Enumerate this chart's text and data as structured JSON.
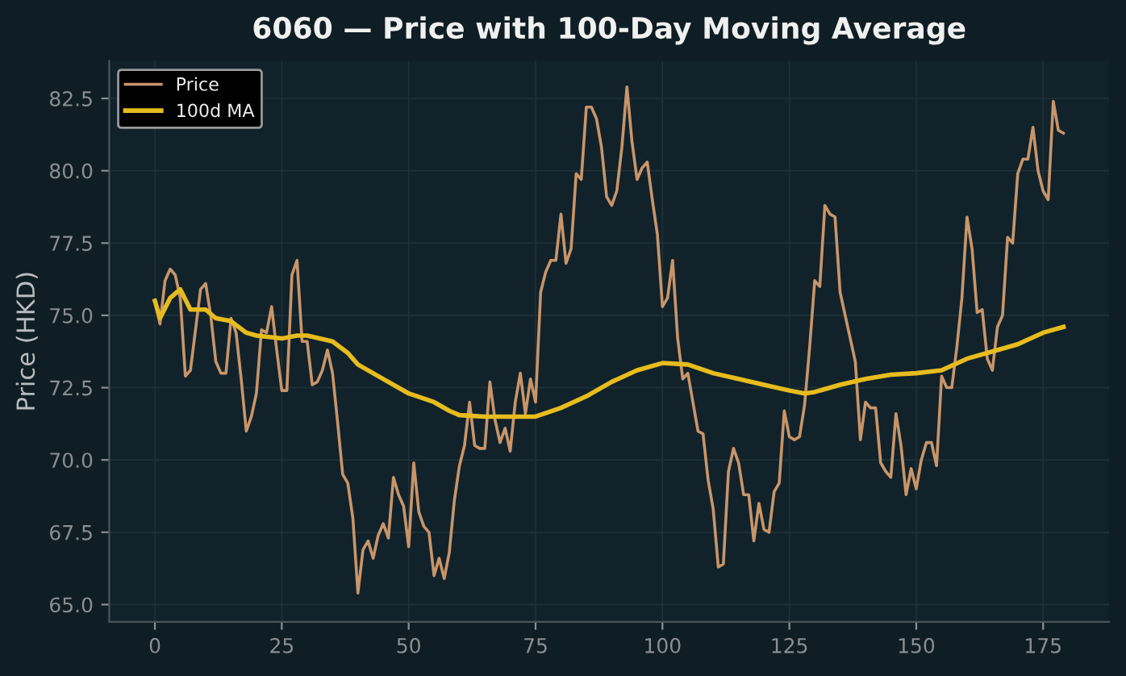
{
  "chart_data": {
    "type": "line",
    "title": "6060 — Price with 100-Day Moving Average",
    "ylabel": "Price (HKD)",
    "xlim": [
      -9,
      188
    ],
    "xticks": [
      0,
      25,
      50,
      75,
      100,
      125,
      150,
      175
    ],
    "ylim": [
      64.4,
      83.8
    ],
    "yticks": [
      {
        "value": 65,
        "label": "65.0"
      },
      {
        "value": 67.5,
        "label": "67.5"
      },
      {
        "value": 70,
        "label": "70.0"
      },
      {
        "value": 72.5,
        "label": "72.5"
      },
      {
        "value": 75,
        "label": "75.0"
      },
      {
        "value": 77.5,
        "label": "77.5"
      },
      {
        "value": 80,
        "label": "80.0"
      },
      {
        "value": 82.5,
        "label": "82.5"
      }
    ],
    "grid": true,
    "legend": "top left",
    "series": [
      {
        "name": "Price",
        "color": "#c8956a",
        "x": [
          0,
          1,
          2,
          3,
          4,
          5,
          6,
          7,
          8,
          9,
          10,
          11,
          12,
          13,
          14,
          15,
          16,
          17,
          18,
          19,
          20,
          21,
          22,
          23,
          24,
          25,
          26,
          27,
          28,
          29,
          30,
          31,
          32,
          33,
          34,
          35,
          36,
          37,
          38,
          39,
          40,
          41,
          42,
          43,
          44,
          45,
          46,
          47,
          48,
          49,
          50,
          51,
          52,
          53,
          54,
          55,
          56,
          57,
          58,
          59,
          60,
          61,
          62,
          63,
          64,
          65,
          66,
          67,
          68,
          69,
          70,
          71,
          72,
          73,
          74,
          75,
          76,
          77,
          78,
          79,
          80,
          81,
          82,
          83,
          84,
          85,
          86,
          87,
          88,
          89,
          90,
          91,
          92,
          93,
          94,
          95,
          96,
          97,
          98,
          99,
          100,
          101,
          102,
          103,
          104,
          105,
          106,
          107,
          108,
          109,
          110,
          111,
          112,
          113,
          114,
          115,
          116,
          117,
          118,
          119,
          120,
          121,
          122,
          123,
          124,
          125,
          126,
          127,
          128,
          129,
          130,
          131,
          132,
          133,
          134,
          135,
          136,
          137,
          138,
          139,
          140,
          141,
          142,
          143,
          144,
          145,
          146,
          147,
          148,
          149,
          150,
          151,
          152,
          153,
          154,
          155,
          156,
          157,
          158,
          159,
          160,
          161,
          162,
          163,
          164,
          165,
          166,
          167,
          168,
          169,
          170,
          171,
          172,
          173,
          174,
          175,
          176,
          177,
          178,
          179
        ],
        "values": [
          75.5,
          74.7,
          76.2,
          76.6,
          76.4,
          75.6,
          72.9,
          73.1,
          74.5,
          75.9,
          76.1,
          75.0,
          73.4,
          73.0,
          73.0,
          74.9,
          74.4,
          72.8,
          71.0,
          71.5,
          72.3,
          74.5,
          74.4,
          75.3,
          73.8,
          72.4,
          72.4,
          76.4,
          76.9,
          74.1,
          74.1,
          72.6,
          72.7,
          73.1,
          73.8,
          73.0,
          71.3,
          69.5,
          69.2,
          68.0,
          65.4,
          66.9,
          67.2,
          66.6,
          67.4,
          67.8,
          67.3,
          69.4,
          68.8,
          68.4,
          67.0,
          69.9,
          68.2,
          67.7,
          67.5,
          66.0,
          66.6,
          65.9,
          66.8,
          68.6,
          69.8,
          70.5,
          72.0,
          70.5,
          70.4,
          70.4,
          72.7,
          71.4,
          70.6,
          71.1,
          70.3,
          72.0,
          73.0,
          71.6,
          72.8,
          72.0,
          75.8,
          76.5,
          76.9,
          76.9,
          78.5,
          76.8,
          77.3,
          79.9,
          79.7,
          82.2,
          82.2,
          81.8,
          80.8,
          79.1,
          78.8,
          79.3,
          80.8,
          82.9,
          81.0,
          79.7,
          80.1,
          80.3,
          79.0,
          77.8,
          75.3,
          75.6,
          76.9,
          74.2,
          72.8,
          73.0,
          72.0,
          71.0,
          70.9,
          69.3,
          68.3,
          66.3,
          66.4,
          69.6,
          70.4,
          69.9,
          68.8,
          68.8,
          67.2,
          68.5,
          67.6,
          67.5,
          68.9,
          69.2,
          71.7,
          70.8,
          70.7,
          70.8,
          71.9,
          73.9,
          76.2,
          76.0,
          78.8,
          78.5,
          78.4,
          75.8,
          75.0,
          74.2,
          73.4,
          70.7,
          72.0,
          71.8,
          71.8,
          69.9,
          69.6,
          69.4,
          71.6,
          70.5,
          68.8,
          69.7,
          69.0,
          70.0,
          70.6,
          70.6,
          69.8,
          72.9,
          72.5,
          72.5,
          73.9,
          75.6,
          78.4,
          77.3,
          75.1,
          75.2,
          73.5,
          73.1,
          74.6,
          75.0,
          77.7,
          77.5,
          79.9,
          80.4,
          80.4,
          81.5,
          80.0,
          79.3,
          79.0,
          82.4,
          81.4,
          81.3
        ]
      },
      {
        "name": "100d MA",
        "color": "#e6bc1e",
        "x": [
          0,
          1,
          3,
          5,
          7,
          10,
          12,
          15,
          18,
          20,
          25,
          28,
          30,
          35,
          38,
          40,
          45,
          50,
          55,
          58,
          60,
          65,
          70,
          75,
          80,
          85,
          90,
          95,
          100,
          105,
          110,
          115,
          120,
          125,
          128,
          130,
          135,
          140,
          145,
          150,
          155,
          160,
          165,
          170,
          175,
          179
        ],
        "values": [
          75.5,
          74.9,
          75.6,
          75.9,
          75.2,
          75.2,
          74.9,
          74.8,
          74.4,
          74.3,
          74.2,
          74.3,
          74.3,
          74.1,
          73.7,
          73.3,
          72.8,
          72.3,
          72.0,
          71.7,
          71.55,
          71.5,
          71.5,
          71.5,
          71.8,
          72.2,
          72.7,
          73.1,
          73.35,
          73.3,
          73.0,
          72.8,
          72.6,
          72.4,
          72.3,
          72.35,
          72.6,
          72.8,
          72.95,
          73.0,
          73.1,
          73.5,
          73.75,
          74.0,
          74.4,
          74.6
        ]
      }
    ]
  }
}
